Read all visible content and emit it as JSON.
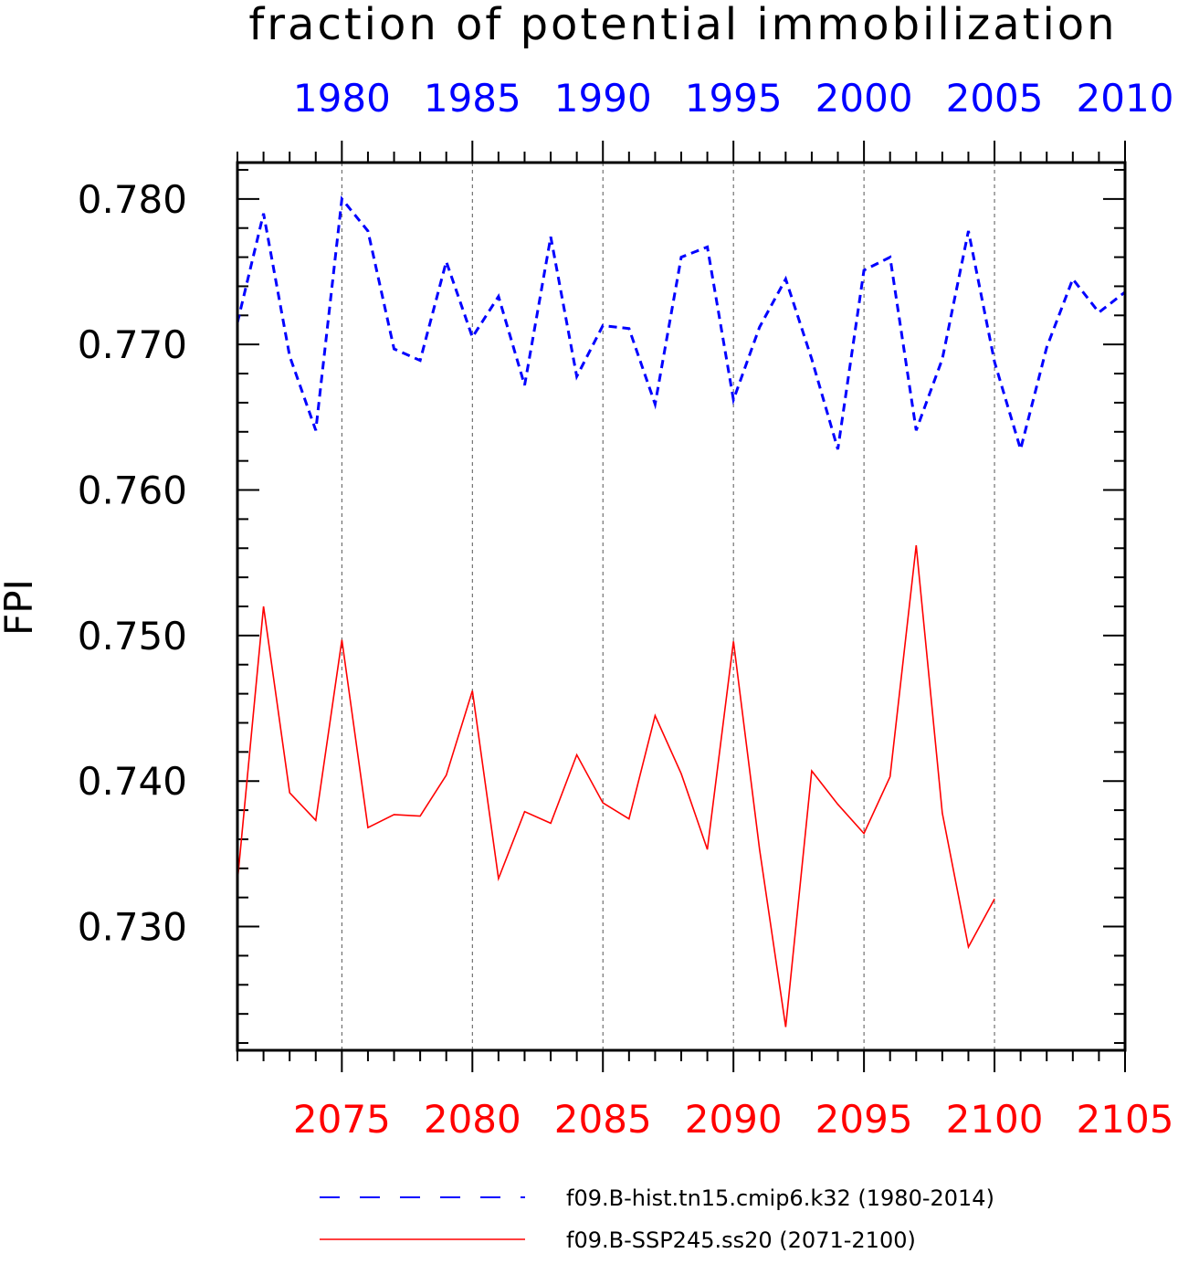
{
  "chart_data": {
    "type": "line",
    "title": "fraction of potential immobilization",
    "ylabel": "FPI",
    "ylim": [
      0.7215,
      0.7825
    ],
    "yticks": [
      0.73,
      0.74,
      0.75,
      0.76,
      0.77,
      0.78
    ],
    "ytick_labels": [
      "0.730",
      "0.740",
      "0.750",
      "0.760",
      "0.770",
      "0.780"
    ],
    "grid": "vertical dashed",
    "top_axis": {
      "color": "#0000ff",
      "range": [
        1976,
        2010
      ],
      "ticks": [
        1980,
        1985,
        1990,
        1995,
        2000,
        2005,
        2010
      ],
      "tick_labels": [
        "1980",
        "1985",
        "1990",
        "1995",
        "2000",
        "2005",
        "2010"
      ]
    },
    "bottom_axis": {
      "color": "#ff0000",
      "range": [
        2071,
        2105
      ],
      "ticks": [
        2075,
        2080,
        2085,
        2090,
        2095,
        2100,
        2105
      ],
      "tick_labels": [
        "2075",
        "2080",
        "2085",
        "2090",
        "2095",
        "2100",
        "2105"
      ]
    },
    "series": [
      {
        "name": "f09.B-hist.tn15.cmip6.k32 (1980-2014)",
        "axis": "top",
        "color": "#0000ff",
        "style": "dashed",
        "x": [
          1976,
          1977,
          1978,
          1979,
          1980,
          1981,
          1982,
          1983,
          1984,
          1985,
          1986,
          1987,
          1988,
          1989,
          1990,
          1991,
          1992,
          1993,
          1994,
          1995,
          1996,
          1997,
          1998,
          1999,
          2000,
          2001,
          2002,
          2003,
          2004,
          2005,
          2006,
          2007,
          2008,
          2009,
          2010
        ],
        "y": [
          0.7715,
          0.779,
          0.7692,
          0.7641,
          0.78,
          0.7778,
          0.7697,
          0.7689,
          0.7757,
          0.7705,
          0.7733,
          0.7672,
          0.7774,
          0.7678,
          0.7713,
          0.7711,
          0.7659,
          0.776,
          0.7767,
          0.7662,
          0.7712,
          0.7745,
          0.769,
          0.7628,
          0.7751,
          0.776,
          0.7641,
          0.769,
          0.7778,
          0.7688,
          0.7628,
          0.7698,
          0.7745,
          0.7722,
          0.7736
        ]
      },
      {
        "name": "f09.B-SSP245.ss20 (2071-2100)",
        "axis": "bottom",
        "color": "#ff0000",
        "style": "solid",
        "x": [
          2071,
          2072,
          2073,
          2074,
          2075,
          2076,
          2077,
          2078,
          2079,
          2080,
          2081,
          2082,
          2083,
          2084,
          2085,
          2086,
          2087,
          2088,
          2089,
          2090,
          2091,
          2092,
          2093,
          2094,
          2095,
          2096,
          2097,
          2098,
          2099,
          2100
        ],
        "y": [
          0.7331,
          0.752,
          0.7392,
          0.7373,
          0.7497,
          0.7368,
          0.7377,
          0.7376,
          0.7404,
          0.7462,
          0.7333,
          0.7379,
          0.7371,
          0.7418,
          0.7385,
          0.7374,
          0.7445,
          0.7405,
          0.7353,
          0.7496,
          0.7353,
          0.7231,
          0.7407,
          0.7384,
          0.7364,
          0.7403,
          0.7562,
          0.7378,
          0.7286,
          0.7319
        ]
      }
    ]
  }
}
